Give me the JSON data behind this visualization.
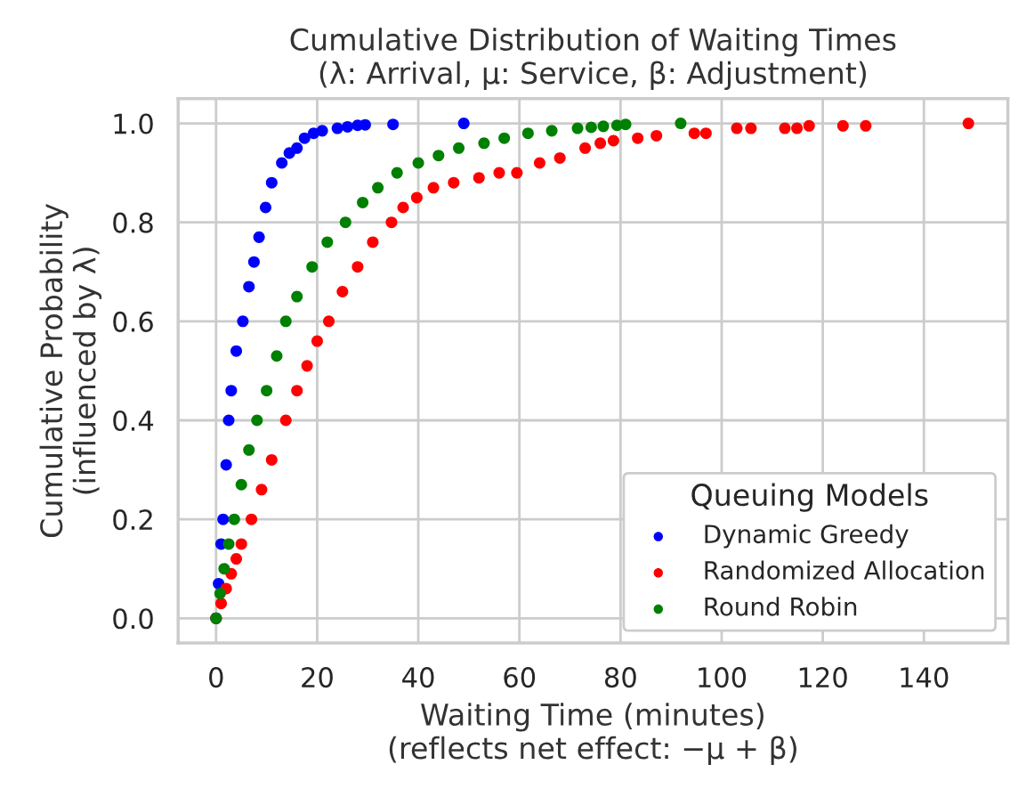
{
  "chart_data": {
    "type": "scatter",
    "title": "Cumulative Distribution of Waiting Times\n(λ: Arrival, μ: Service, β: Adjustment)",
    "xlabel": "Waiting Time (minutes)\n(reflects net effect: −μ + β)",
    "ylabel": "Cumulative Probability\n(influenced by λ)",
    "legend_title": "Queuing Models",
    "series": [
      {
        "name": "Dynamic Greedy",
        "color": "#0000ff",
        "x": [
          0,
          0.5,
          1,
          1.4,
          2,
          2.5,
          3,
          4,
          5.3,
          6.5,
          7.5,
          8.5,
          9.8,
          11,
          13,
          14.5,
          16,
          17.5,
          19.3,
          21,
          24,
          26,
          28,
          29.5,
          35,
          49
        ],
        "values": [
          0,
          0.07,
          0.15,
          0.2,
          0.31,
          0.4,
          0.46,
          0.54,
          0.6,
          0.67,
          0.72,
          0.77,
          0.83,
          0.88,
          0.92,
          0.94,
          0.95,
          0.97,
          0.98,
          0.985,
          0.99,
          0.993,
          0.996,
          0.997,
          0.998,
          1.0
        ]
      },
      {
        "name": "Randomized Allocation",
        "color": "#ff0000",
        "x": [
          0,
          1,
          2,
          3,
          4,
          5,
          7,
          9,
          11,
          13.8,
          16,
          18,
          20,
          22.3,
          25,
          28,
          31,
          34.7,
          37,
          39.7,
          43,
          47,
          52,
          56,
          59.5,
          64,
          68,
          73,
          76,
          78.6,
          83.4,
          87.1,
          94.6,
          96.9,
          103,
          105.8,
          112.5,
          114.9,
          117.3,
          124,
          128.5,
          148.8
        ],
        "values": [
          0,
          0.03,
          0.06,
          0.09,
          0.12,
          0.15,
          0.2,
          0.26,
          0.32,
          0.4,
          0.46,
          0.51,
          0.56,
          0.6,
          0.66,
          0.71,
          0.76,
          0.8,
          0.83,
          0.85,
          0.87,
          0.88,
          0.89,
          0.9,
          0.9,
          0.92,
          0.93,
          0.95,
          0.96,
          0.965,
          0.97,
          0.975,
          0.98,
          0.98,
          0.99,
          0.99,
          0.99,
          0.99,
          0.995,
          0.995,
          0.995,
          1.0
        ]
      },
      {
        "name": "Round Robin",
        "color": "#008000",
        "x": [
          0,
          0.8,
          1.6,
          2.5,
          3.6,
          5,
          6.5,
          8.1,
          10,
          12,
          13.8,
          16,
          19,
          22,
          25.6,
          29,
          32,
          35.8,
          40,
          44,
          48,
          53,
          57,
          61.7,
          66.4,
          71.5,
          74.2,
          76.6,
          79.3,
          81,
          91.9
        ],
        "values": [
          0,
          0.05,
          0.1,
          0.15,
          0.2,
          0.27,
          0.34,
          0.4,
          0.46,
          0.53,
          0.6,
          0.65,
          0.71,
          0.76,
          0.8,
          0.84,
          0.87,
          0.9,
          0.92,
          0.935,
          0.95,
          0.96,
          0.97,
          0.98,
          0.985,
          0.99,
          0.992,
          0.994,
          0.996,
          0.998,
          1.0
        ]
      }
    ],
    "xlim": [
      -7.5,
      156.6
    ],
    "xticks": [
      0,
      20,
      40,
      60,
      80,
      100,
      120,
      140
    ],
    "ylim": [
      -0.05,
      1.05
    ],
    "yticks": [
      {
        "value": 0,
        "label": "0.0"
      },
      {
        "value": 0.2,
        "label": "0.2"
      },
      {
        "value": 0.4,
        "label": "0.4"
      },
      {
        "value": 0.6,
        "label": "0.6"
      },
      {
        "value": 0.8,
        "label": "0.8"
      },
      {
        "value": 1.0,
        "label": "1.0"
      }
    ],
    "grid": true,
    "legend": "bottom right",
    "marker": "circle"
  }
}
